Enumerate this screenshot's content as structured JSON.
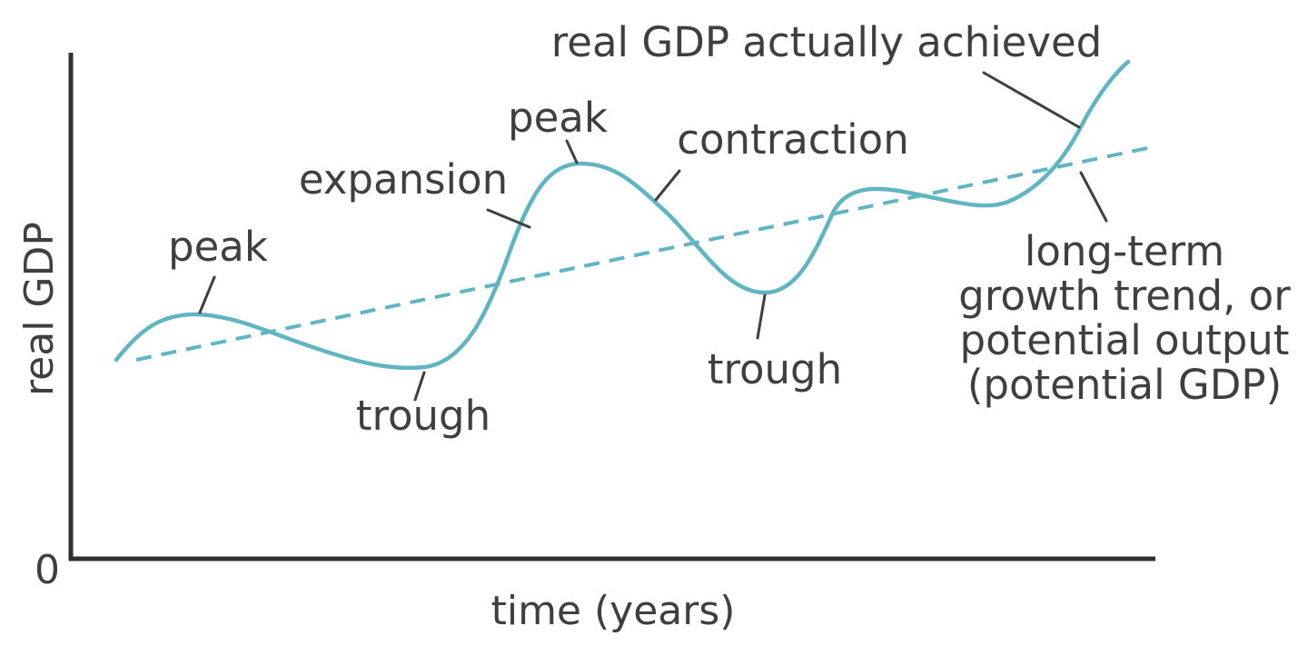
{
  "axes": {
    "y_label": "real GDP",
    "x_label": "time (years)",
    "origin_label": "0"
  },
  "labels": {
    "peak_1": "peak",
    "trough_1": "trough",
    "expansion": "expansion",
    "peak_2": "peak",
    "contraction": "contraction",
    "trough_2": "trough",
    "actual_gdp": "real GDP actually achieved",
    "trend_line_1": "long-term",
    "trend_line_2": "growth trend, or",
    "trend_line_3": "potential output",
    "trend_line_4": "(potential GDP)"
  },
  "colors": {
    "curve": "#5fb5c2",
    "trend": "#5fb5c2",
    "text": "#3f3f3f",
    "axis": "#2f2f2f"
  }
}
